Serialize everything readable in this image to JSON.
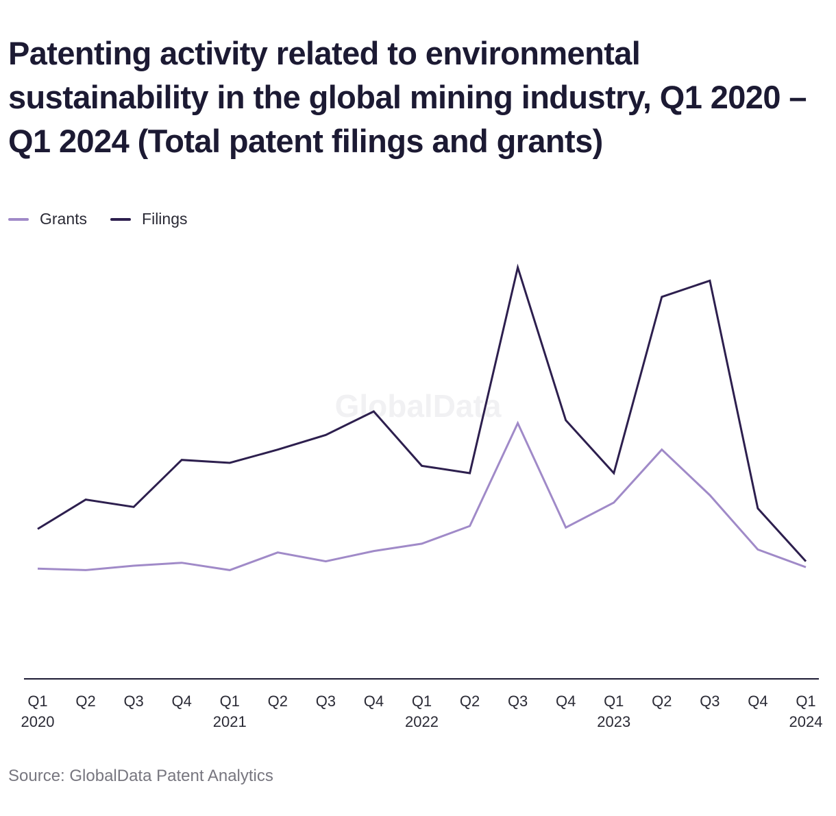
{
  "title": "Patenting activity related to environmental sustainability in the global mining industry, Q1 2020 – Q1 2024 (Total patent filings and grants)",
  "source": "Source: GlobalData Patent Analytics",
  "watermark": "GlobalData",
  "colors": {
    "grants": "#a08ac8",
    "filings": "#2d1f4e",
    "axis": "#1c1a33",
    "text": "#1c1a33",
    "tick_text": "#2a2a35",
    "source_text": "#77767f",
    "watermark": "#f1f1f3"
  },
  "chart_data": {
    "type": "line",
    "title": "Patenting activity related to environmental sustainability in the global mining industry, Q1 2020 – Q1 2024 (Total patent filings and grants)",
    "xlabel": "",
    "ylabel": "",
    "grid": false,
    "legend_position": "top-left",
    "y_axis_shown": false,
    "ylim": [
      0,
      280
    ],
    "categories": [
      [
        "Q1",
        "2020"
      ],
      [
        "Q2",
        ""
      ],
      [
        "Q3",
        ""
      ],
      [
        "Q4",
        ""
      ],
      [
        "Q1",
        "2021"
      ],
      [
        "Q2",
        ""
      ],
      [
        "Q3",
        ""
      ],
      [
        "Q4",
        ""
      ],
      [
        "Q1",
        "2022"
      ],
      [
        "Q2",
        ""
      ],
      [
        "Q3",
        ""
      ],
      [
        "Q4",
        ""
      ],
      [
        "Q1",
        "2023"
      ],
      [
        "Q2",
        ""
      ],
      [
        "Q3",
        ""
      ],
      [
        "Q4",
        ""
      ],
      [
        "Q1",
        "2024"
      ]
    ],
    "series": [
      {
        "name": "Grants",
        "color": "#a08ac8",
        "values": [
          75,
          74,
          77,
          79,
          74,
          86,
          80,
          87,
          92,
          104,
          174,
          103,
          120,
          156,
          125,
          88,
          76
        ]
      },
      {
        "name": "Filings",
        "color": "#2d1f4e",
        "values": [
          102,
          122,
          117,
          149,
          147,
          156,
          166,
          182,
          145,
          140,
          280,
          176,
          140,
          260,
          271,
          116,
          80
        ]
      }
    ]
  }
}
